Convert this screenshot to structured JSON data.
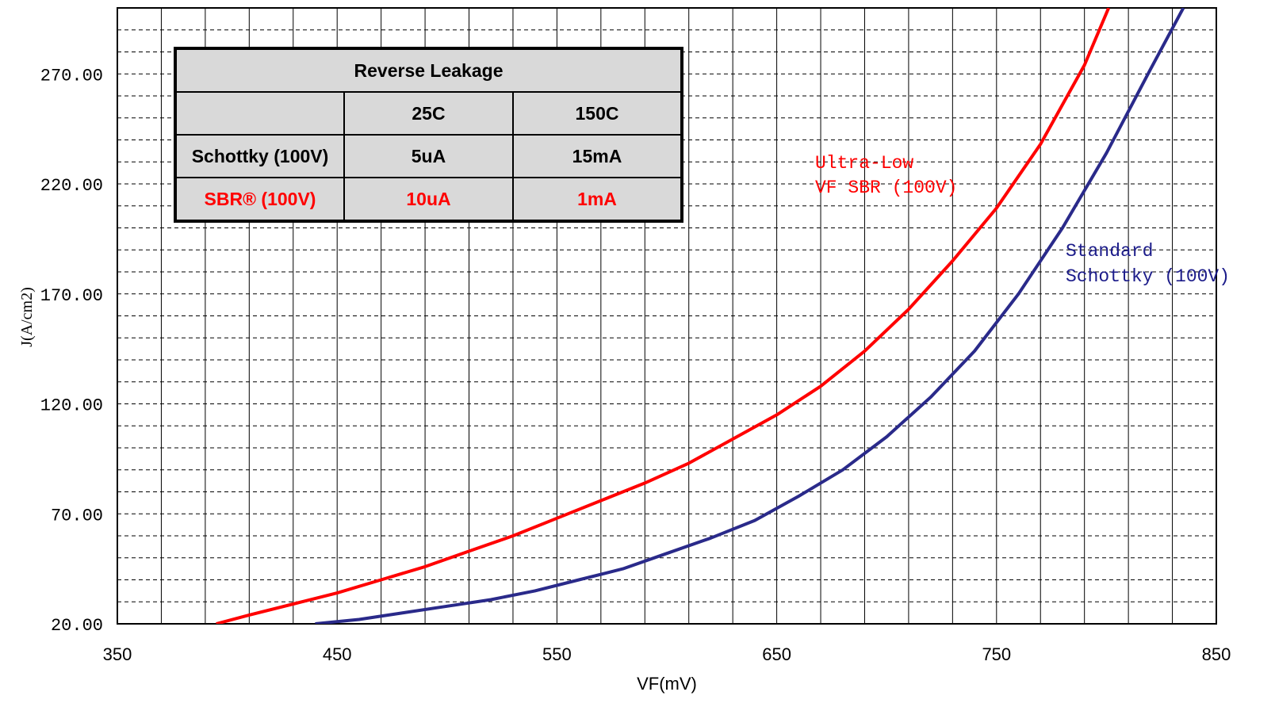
{
  "chart_data": {
    "type": "line",
    "title": "",
    "xlabel": "VF(mV)",
    "ylabel": "J(A/cm2)",
    "xlim": [
      350,
      850
    ],
    "ylim": [
      20,
      300
    ],
    "x_ticks": [
      "350",
      "450",
      "550",
      "650",
      "750",
      "850"
    ],
    "y_ticks": [
      "20.00",
      "70.00",
      "120.00",
      "170.00",
      "220.00",
      "270.00"
    ],
    "x_tick_values": [
      350,
      450,
      550,
      650,
      750,
      850
    ],
    "y_tick_values": [
      20,
      70,
      120,
      170,
      220,
      270
    ],
    "x_minor_step": 20,
    "y_minor_step": 10,
    "grid": true,
    "series": [
      {
        "name": "Ultra-Low VF SBR (100V)",
        "color": "#ff0000",
        "x": [
          395,
          410,
          430,
          450,
          470,
          490,
          510,
          530,
          550,
          570,
          590,
          610,
          630,
          650,
          670,
          690,
          710,
          730,
          750,
          770,
          790,
          801
        ],
        "y": [
          20,
          24,
          29,
          34,
          40,
          46,
          53,
          60,
          68,
          76,
          84,
          93,
          104,
          115,
          128,
          144,
          163,
          185,
          209,
          238,
          274,
          300
        ]
      },
      {
        "name": "Standard Schottky (100V)",
        "color": "#2a2a8a",
        "x": [
          440,
          460,
          480,
          500,
          520,
          540,
          560,
          580,
          600,
          620,
          640,
          660,
          680,
          700,
          720,
          740,
          760,
          780,
          800,
          820,
          835
        ],
        "y": [
          20,
          22,
          25,
          28,
          31,
          35,
          40,
          45,
          52,
          59,
          67,
          78,
          90,
          105,
          123,
          144,
          170,
          200,
          234,
          272,
          300
        ]
      }
    ],
    "annotations": [
      {
        "lines": [
          "Ultra-Low",
          "VF SBR (100V)"
        ],
        "color": "#ff0000"
      },
      {
        "lines": [
          "Standard",
          "Schottky (100V)"
        ],
        "color": "#1c1c8a"
      }
    ]
  },
  "table": {
    "title": "Reverse Leakage",
    "columns": [
      "",
      "25C",
      "150C"
    ],
    "rows": [
      {
        "label": "Schottky (100V)",
        "v25": "5uA",
        "v150": "15mA",
        "color": "#000000"
      },
      {
        "label": "SBR® (100V)",
        "v25": "10uA",
        "v150": "1mA",
        "color": "#ff0000"
      }
    ]
  }
}
